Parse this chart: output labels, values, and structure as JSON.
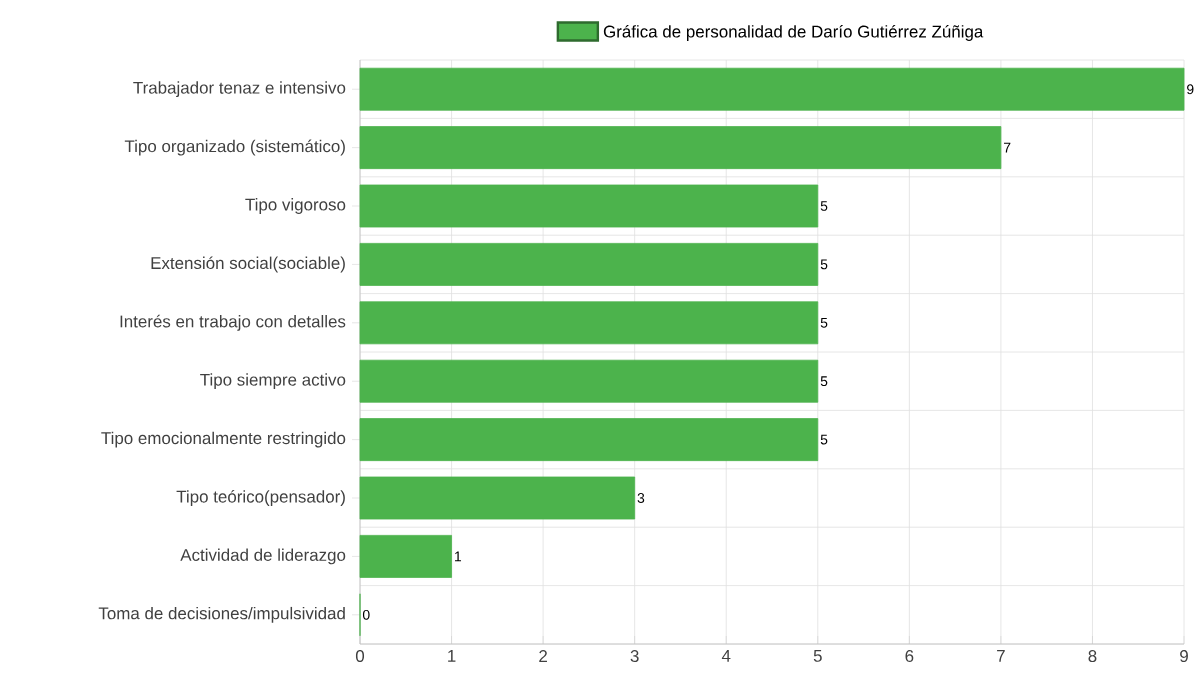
{
  "chart_data": {
    "type": "bar",
    "orientation": "horizontal",
    "categories": [
      "Trabajador tenaz e intensivo",
      "Tipo organizado (sistemático)",
      "Tipo vigoroso",
      "Extensión social(sociable)",
      "Interés en trabajo con detalles",
      "Tipo siempre activo",
      "Tipo emocionalmente restringido",
      "Tipo teórico(pensador)",
      "Actividad de liderazgo",
      "Toma de decisiones/impulsividad"
    ],
    "series": [
      {
        "name": "Gráfica de personalidad de Darío Gutiérrez Zúñiga",
        "color": "#4cb34c",
        "values": [
          9,
          7,
          5,
          5,
          5,
          5,
          5,
          3,
          1,
          0
        ]
      }
    ],
    "xlim": [
      0,
      9
    ],
    "xticks": [
      0,
      1,
      2,
      3,
      4,
      5,
      6,
      7,
      8,
      9
    ],
    "grid": true,
    "legend": "top",
    "data_labels": true
  }
}
